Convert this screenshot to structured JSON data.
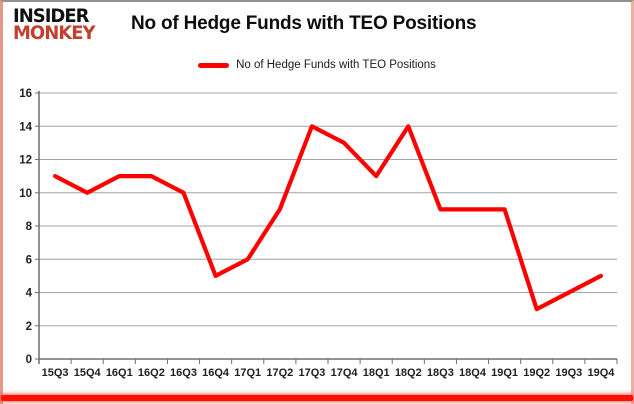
{
  "header": {
    "logo_line1": "INSIDER",
    "logo_line2": "MONKEY",
    "title": "No of Hedge Funds with TEO Positions"
  },
  "legend": {
    "label": "No of Hedge Funds with TEO Positions",
    "swatch_color": "#ff0000"
  },
  "chart_data": {
    "type": "line",
    "title": "No of Hedge Funds with TEO Positions",
    "categories": [
      "15Q3",
      "15Q4",
      "16Q1",
      "16Q2",
      "16Q3",
      "16Q4",
      "17Q1",
      "17Q2",
      "17Q3",
      "17Q4",
      "18Q1",
      "18Q2",
      "18Q3",
      "18Q4",
      "19Q1",
      "19Q2",
      "19Q3",
      "19Q4"
    ],
    "series": [
      {
        "name": "No of Hedge Funds with TEO Positions",
        "color": "#ff0000",
        "values": [
          11,
          10,
          11,
          11,
          10,
          5,
          6,
          9,
          14,
          13,
          11,
          14,
          9,
          9,
          9,
          3,
          4,
          5
        ]
      }
    ],
    "xlabel": "",
    "ylabel": "",
    "ylim": [
      0,
      16
    ],
    "y_ticks": [
      0,
      2,
      4,
      6,
      8,
      10,
      12,
      14,
      16
    ],
    "grid": true,
    "legend_position": "top"
  },
  "colors": {
    "line": "#ff0000",
    "gridline": "#a3a3a3",
    "axis": "#6e6e6e",
    "logo_accent": "#c2402d",
    "frame_bottom": "#ff0f00"
  }
}
